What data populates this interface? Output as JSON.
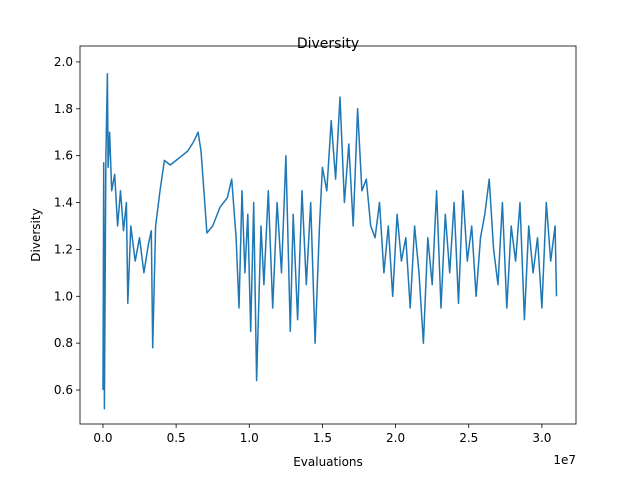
{
  "chart_data": {
    "type": "line",
    "title": "Diversity",
    "x_label": "Evaluations",
    "y_label": "Diversity",
    "x_offset_label": "1e7",
    "color": "#1f77b4",
    "xlim": [
      -0.157,
      3.233
    ],
    "ylim": [
      0.455,
      2.068
    ],
    "xticks": [
      {
        "value": 0,
        "label": "0.0"
      },
      {
        "value": 0.5,
        "label": "0.5"
      },
      {
        "value": 1,
        "label": "1.0"
      },
      {
        "value": 1.5,
        "label": "1.5"
      },
      {
        "value": 2,
        "label": "2.0"
      },
      {
        "value": 2.5,
        "label": "2.5"
      },
      {
        "value": 3,
        "label": "3.0"
      }
    ],
    "yticks": [
      {
        "value": 0.6,
        "label": "0.6"
      },
      {
        "value": 0.8,
        "label": "0.8"
      },
      {
        "value": 1,
        "label": "1.0"
      },
      {
        "value": 1.2,
        "label": "1.2"
      },
      {
        "value": 1.4,
        "label": "1.4"
      },
      {
        "value": 1.6,
        "label": "1.6"
      },
      {
        "value": 1.8,
        "label": "1.8"
      },
      {
        "value": 2,
        "label": "2.0"
      }
    ],
    "x": [
      0.0,
      0.005,
      0.01,
      0.015,
      0.02,
      0.03,
      0.035,
      0.045,
      0.06,
      0.08,
      0.1,
      0.12,
      0.14,
      0.16,
      0.17,
      0.19,
      0.22,
      0.25,
      0.28,
      0.31,
      0.33,
      0.34,
      0.36,
      0.39,
      0.42,
      0.46,
      0.5,
      0.54,
      0.58,
      0.62,
      0.65,
      0.67,
      0.69,
      0.71,
      0.75,
      0.8,
      0.85,
      0.88,
      0.91,
      0.93,
      0.95,
      0.97,
      0.99,
      1.01,
      1.03,
      1.05,
      1.08,
      1.1,
      1.13,
      1.16,
      1.19,
      1.22,
      1.25,
      1.28,
      1.3,
      1.33,
      1.36,
      1.39,
      1.42,
      1.45,
      1.48,
      1.5,
      1.53,
      1.56,
      1.59,
      1.62,
      1.65,
      1.68,
      1.71,
      1.74,
      1.77,
      1.8,
      1.83,
      1.86,
      1.89,
      1.92,
      1.95,
      1.98,
      2.01,
      2.04,
      2.07,
      2.1,
      2.13,
      2.16,
      2.19,
      2.22,
      2.25,
      2.28,
      2.31,
      2.34,
      2.37,
      2.4,
      2.43,
      2.46,
      2.49,
      2.52,
      2.55,
      2.58,
      2.61,
      2.64,
      2.67,
      2.7,
      2.73,
      2.76,
      2.79,
      2.82,
      2.85,
      2.88,
      2.91,
      2.94,
      2.97,
      3.0,
      3.03,
      3.06,
      3.09,
      3.1
    ],
    "values": [
      0.6,
      1.57,
      0.52,
      1.1,
      1.6,
      1.95,
      1.55,
      1.7,
      1.45,
      1.52,
      1.3,
      1.45,
      1.28,
      1.4,
      0.97,
      1.3,
      1.15,
      1.25,
      1.1,
      1.22,
      1.28,
      0.78,
      1.3,
      1.45,
      1.58,
      1.56,
      1.58,
      1.6,
      1.62,
      1.66,
      1.7,
      1.62,
      1.45,
      1.27,
      1.3,
      1.38,
      1.42,
      1.5,
      1.25,
      0.95,
      1.45,
      1.1,
      1.35,
      0.85,
      1.4,
      0.64,
      1.3,
      1.05,
      1.45,
      0.95,
      1.4,
      1.1,
      1.6,
      0.85,
      1.35,
      0.9,
      1.45,
      1.05,
      1.4,
      0.8,
      1.3,
      1.55,
      1.45,
      1.75,
      1.5,
      1.85,
      1.4,
      1.65,
      1.3,
      1.8,
      1.45,
      1.5,
      1.3,
      1.25,
      1.4,
      1.1,
      1.3,
      1.0,
      1.35,
      1.15,
      1.25,
      0.95,
      1.3,
      1.1,
      0.8,
      1.25,
      1.05,
      1.45,
      0.95,
      1.35,
      1.1,
      1.4,
      0.97,
      1.45,
      1.15,
      1.3,
      1.0,
      1.25,
      1.35,
      1.5,
      1.2,
      1.05,
      1.4,
      0.95,
      1.3,
      1.15,
      1.4,
      0.9,
      1.3,
      1.1,
      1.25,
      0.95,
      1.4,
      1.15,
      1.3,
      1.0
    ]
  }
}
